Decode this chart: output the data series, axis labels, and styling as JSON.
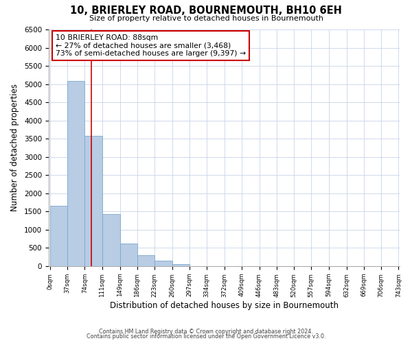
{
  "title": "10, BRIERLEY ROAD, BOURNEMOUTH, BH10 6EH",
  "subtitle": "Size of property relative to detached houses in Bournemouth",
  "xlabel": "Distribution of detached houses by size in Bournemouth",
  "ylabel": "Number of detached properties",
  "bin_edges": [
    0,
    37,
    74,
    111,
    149,
    186,
    223,
    260,
    297,
    334,
    372,
    409,
    446,
    483,
    520,
    557,
    594,
    632,
    669,
    706,
    743
  ],
  "bar_heights": [
    1650,
    5080,
    3580,
    1430,
    615,
    300,
    150,
    50,
    0,
    0,
    0,
    0,
    0,
    0,
    0,
    0,
    0,
    0,
    0,
    0
  ],
  "bar_color": "#b8cce4",
  "bar_edgecolor": "#7aa8cc",
  "property_line_x": 88,
  "property_line_color": "#cc0000",
  "annotation_line1": "10 BRIERLEY ROAD: 88sqm",
  "annotation_line2": "← 27% of detached houses are smaller (3,468)",
  "annotation_line3": "73% of semi-detached houses are larger (9,397) →",
  "annotation_box_edgecolor": "#cc0000",
  "annotation_box_facecolor": "#ffffff",
  "ylim": [
    0,
    6500
  ],
  "yticks": [
    0,
    500,
    1000,
    1500,
    2000,
    2500,
    3000,
    3500,
    4000,
    4500,
    5000,
    5500,
    6000,
    6500
  ],
  "footer_line1": "Contains HM Land Registry data © Crown copyright and database right 2024.",
  "footer_line2": "Contains public sector information licensed under the Open Government Licence v3.0.",
  "bg_color": "#ffffff",
  "grid_color": "#c8d4e8"
}
